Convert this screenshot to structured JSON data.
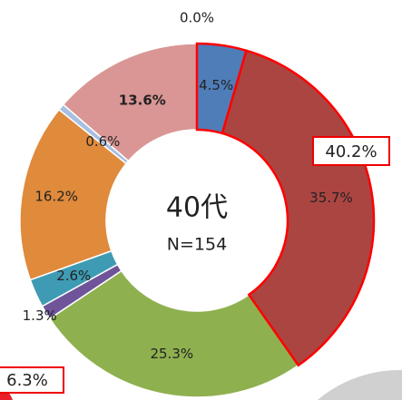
{
  "chart_data": {
    "type": "donut",
    "center_text": "40代",
    "center_subtext": "N=154",
    "categories": [
      null,
      null,
      null,
      null,
      null,
      null,
      null,
      null,
      null
    ],
    "values": [
      0.0,
      4.5,
      35.7,
      25.3,
      1.3,
      2.6,
      16.2,
      0.6,
      13.6
    ],
    "value_labels": [
      "0.0%",
      "4.5%",
      "35.7%",
      "25.3%",
      "1.3%",
      "2.6%",
      "16.2%",
      "0.6%",
      "13.6%"
    ],
    "colors": [
      "#c0c0c0",
      "#4f7db8",
      "#ab4542",
      "#8fb04f",
      "#6f549a",
      "#3e9bb3",
      "#e08a3c",
      "#a7bfe0",
      "#d99694"
    ],
    "annotations": [
      "40.2%",
      "6.3%"
    ]
  }
}
